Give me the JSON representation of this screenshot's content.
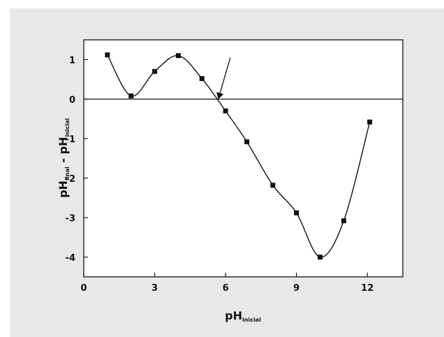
{
  "chart_data": {
    "type": "line",
    "title": "",
    "xlabel": "pH",
    "xlabel_sub": "inicial",
    "ylabel_parts": [
      {
        "text": "pH",
        "sub": false
      },
      {
        "text": "final",
        "sub": true
      },
      {
        "text": " - pH",
        "sub": false
      },
      {
        "text": "inicial",
        "sub": true
      }
    ],
    "xlim": [
      0,
      13.5
    ],
    "ylim": [
      -4.5,
      1.5
    ],
    "xticks": [
      0,
      3,
      6,
      9,
      12
    ],
    "yticks": [
      1,
      0,
      -1,
      -2,
      -3,
      -4
    ],
    "grid": false,
    "zero_line": 0,
    "series": [
      {
        "marker": "square",
        "color": "#111111",
        "x": [
          1.0,
          2.0,
          3.0,
          4.0,
          5.0,
          6.0,
          6.9,
          8.0,
          9.0,
          10.0,
          11.0,
          12.1
        ],
        "y": [
          1.12,
          0.08,
          0.7,
          1.1,
          0.52,
          -0.3,
          -1.08,
          -2.18,
          -2.88,
          -4.0,
          -3.08,
          -0.58
        ]
      }
    ],
    "annotations": [
      {
        "type": "arrow",
        "from": [
          6.2,
          1.05
        ],
        "to": [
          5.7,
          0.02
        ]
      }
    ]
  }
}
